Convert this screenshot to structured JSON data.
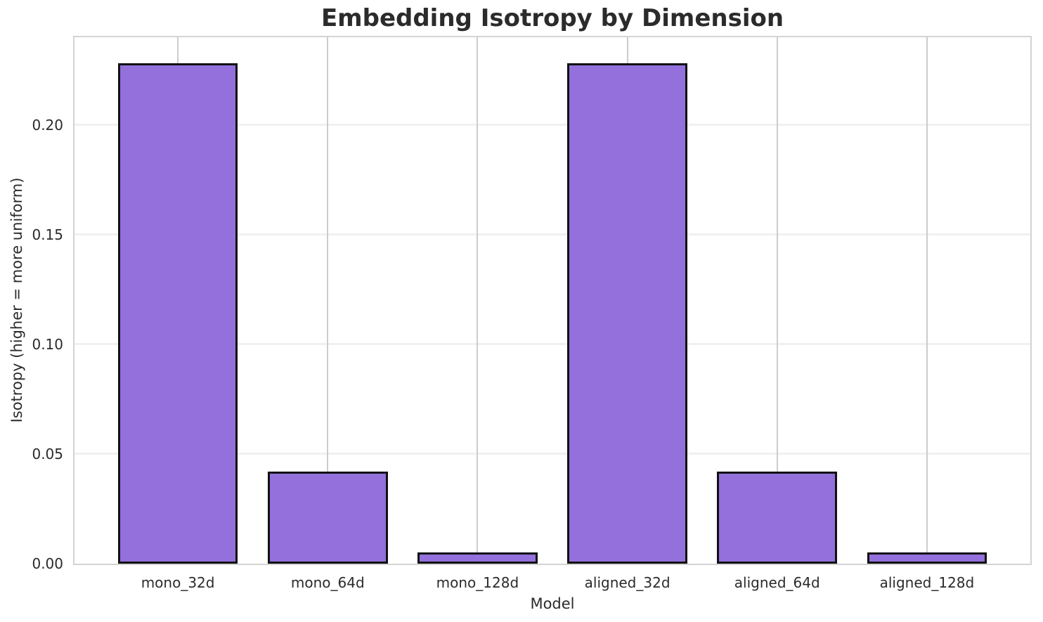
{
  "chart_data": {
    "type": "bar",
    "title": "Embedding Isotropy by Dimension",
    "xlabel": "Model",
    "ylabel": "Isotropy (higher = more uniform)",
    "categories": [
      "mono_32d",
      "mono_64d",
      "mono_128d",
      "aligned_32d",
      "aligned_64d",
      "aligned_128d"
    ],
    "values": [
      0.228,
      0.042,
      0.005,
      0.228,
      0.042,
      0.005
    ],
    "ylim": [
      0,
      0.24
    ],
    "y_ticks": [
      0.0,
      0.05,
      0.1,
      0.15,
      0.2
    ],
    "y_tick_labels": [
      "0.00",
      "0.05",
      "0.10",
      "0.15",
      "0.20"
    ],
    "x_range": [
      -0.69,
      5.69
    ],
    "bar_width_fraction": 0.8,
    "grid": true,
    "legend": "none",
    "colors": {
      "bar_fill": "#9370DB",
      "bar_edge": "#111111",
      "grid_vertical": "#cccccc",
      "grid_horizontal": "#f0f0f0",
      "spine": "#d4d4d4",
      "text": "#2b2b2b",
      "background": "#ffffff"
    }
  }
}
